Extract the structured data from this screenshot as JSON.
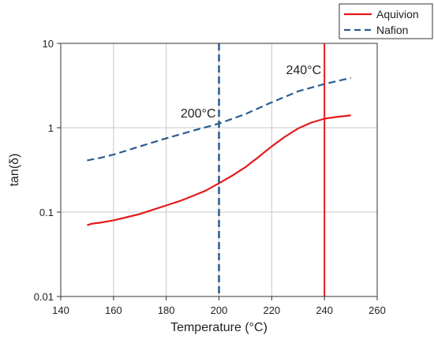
{
  "chart_data": {
    "type": "line",
    "xlabel": "Temperature (°C)",
    "ylabel": "tan(δ)",
    "xlim": [
      140,
      260
    ],
    "ylim": [
      0.01,
      10
    ],
    "yscale": "log",
    "grid": true,
    "legend_position": "top-right, outside plot",
    "x_ticks": [
      "140",
      "160",
      "180",
      "200",
      "220",
      "240",
      "260"
    ],
    "y_ticks": [
      "0.01",
      "0.1",
      "1",
      "10"
    ],
    "series": [
      {
        "name": "Aquivion",
        "color": "#e31a1c",
        "style": "solid",
        "x": [
          150,
          152,
          155,
          160,
          165,
          170,
          175,
          180,
          185,
          190,
          195,
          200,
          205,
          210,
          215,
          220,
          225,
          230,
          235,
          240,
          245,
          250
        ],
        "y": [
          0.07,
          0.073,
          0.075,
          0.08,
          0.087,
          0.095,
          0.107,
          0.12,
          0.135,
          0.155,
          0.18,
          0.22,
          0.27,
          0.34,
          0.45,
          0.6,
          0.78,
          0.98,
          1.15,
          1.28,
          1.35,
          1.4
        ]
      },
      {
        "name": "Nafion",
        "color": "#2a5d8f",
        "style": "dashed",
        "x": [
          150,
          155,
          160,
          170,
          180,
          190,
          200,
          210,
          220,
          230,
          240,
          250
        ],
        "y": [
          0.41,
          0.44,
          0.48,
          0.6,
          0.75,
          0.92,
          1.12,
          1.45,
          2.0,
          2.7,
          3.3,
          3.9
        ]
      }
    ],
    "vlines": [
      {
        "x": 200,
        "label": "200°C",
        "color": "#2a5d8f",
        "style": "dashed"
      },
      {
        "x": 240,
        "label": "240°C",
        "color": "#e31a1c",
        "style": "solid"
      }
    ]
  }
}
